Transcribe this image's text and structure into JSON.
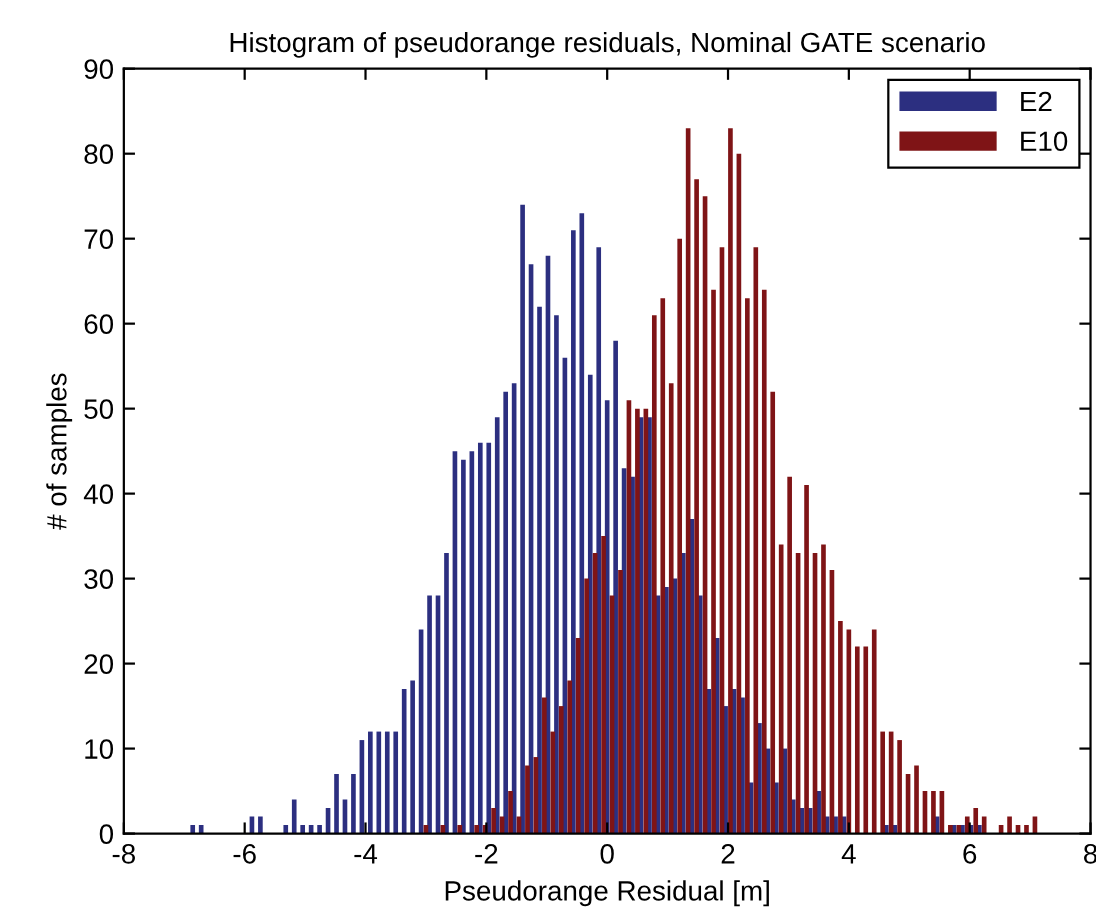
{
  "chart_data": {
    "type": "bar",
    "title": "Histogram of pseudorange residuals, Nominal GATE scenario",
    "xlabel": "Pseudorange Residual [m]",
    "ylabel": "# of samples",
    "xlim": [
      -8,
      8
    ],
    "xticks": [
      -8,
      -6,
      -4,
      -2,
      0,
      2,
      4,
      6,
      8
    ],
    "ylim": [
      0,
      90
    ],
    "yticks": [
      0,
      10,
      20,
      30,
      40,
      50,
      60,
      70,
      80,
      90
    ],
    "grid": false,
    "legend": "top right",
    "series": [
      {
        "name": "E2",
        "color": "#2c2f80",
        "x": [
          -6.86,
          -6.72,
          -6.58,
          -6.44,
          -6.3,
          -6.16,
          -6.02,
          -5.88,
          -5.74,
          -5.6,
          -5.46,
          -5.32,
          -5.18,
          -5.04,
          -4.9,
          -4.76,
          -4.62,
          -4.48,
          -4.34,
          -4.2,
          -4.06,
          -3.92,
          -3.78,
          -3.64,
          -3.5,
          -3.36,
          -3.22,
          -3.08,
          -2.94,
          -2.8,
          -2.66,
          -2.52,
          -2.38,
          -2.24,
          -2.1,
          -1.96,
          -1.82,
          -1.68,
          -1.54,
          -1.4,
          -1.26,
          -1.12,
          -0.98,
          -0.84,
          -0.7,
          -0.56,
          -0.42,
          -0.28,
          -0.14,
          0,
          0.14,
          0.28,
          0.42,
          0.56,
          0.7,
          0.84,
          0.98,
          1.12,
          1.26,
          1.4,
          1.54,
          1.68,
          1.82,
          1.96,
          2.1,
          2.24,
          2.38,
          2.52,
          2.66,
          2.8,
          2.94,
          3.08,
          3.22,
          3.36,
          3.5,
          3.64,
          3.78,
          3.92,
          4.06,
          4.2,
          4.34,
          4.48,
          4.62,
          4.76,
          4.9,
          5.04,
          5.18,
          5.32,
          5.46,
          5.6,
          5.74,
          5.88,
          6.02,
          6.16
        ],
        "values": [
          1,
          1,
          0,
          0,
          0,
          0,
          0,
          2,
          2,
          0,
          0,
          1,
          4,
          1,
          1,
          1,
          3,
          7,
          4,
          7,
          11,
          12,
          12,
          12,
          12,
          17,
          18,
          24,
          28,
          28,
          33,
          45,
          44,
          45,
          46,
          46,
          49,
          52,
          53,
          74,
          67,
          62,
          68,
          61,
          56,
          71,
          73,
          54,
          69,
          51,
          58,
          43,
          42,
          49,
          49,
          28,
          29,
          30,
          33,
          37,
          28,
          17,
          23,
          15,
          17,
          16,
          6,
          13,
          10,
          6,
          10,
          4,
          3,
          3,
          5,
          2,
          2,
          2,
          0,
          0,
          0,
          0,
          1,
          1,
          0,
          0,
          0,
          0,
          2,
          0,
          1,
          1,
          1,
          1
        ]
      },
      {
        "name": "E10",
        "color": "#7f1416",
        "x": [
          -3,
          -2.86,
          -2.72,
          -2.58,
          -2.44,
          -2.3,
          -2.16,
          -2.02,
          -1.88,
          -1.74,
          -1.6,
          -1.46,
          -1.32,
          -1.18,
          -1.04,
          -0.9,
          -0.76,
          -0.62,
          -0.48,
          -0.34,
          -0.2,
          -0.06,
          0.08,
          0.22,
          0.36,
          0.5,
          0.64,
          0.78,
          0.92,
          1.06,
          1.2,
          1.34,
          1.48,
          1.62,
          1.76,
          1.9,
          2.04,
          2.18,
          2.32,
          2.46,
          2.6,
          2.74,
          2.88,
          3.02,
          3.16,
          3.3,
          3.44,
          3.58,
          3.72,
          3.86,
          4.0,
          4.14,
          4.28,
          4.42,
          4.56,
          4.7,
          4.84,
          4.98,
          5.12,
          5.26,
          5.4,
          5.54,
          5.68,
          5.82,
          5.96,
          6.1,
          6.24,
          6.38,
          6.52,
          6.66,
          6.8,
          6.94,
          7.08
        ],
        "values": [
          1,
          0,
          1,
          0,
          1,
          0,
          1,
          1,
          3,
          2,
          5,
          2,
          8,
          9,
          16,
          12,
          15,
          18,
          23,
          30,
          33,
          35,
          28,
          31,
          51,
          50,
          50,
          61,
          63,
          53,
          70,
          83,
          77,
          75,
          64,
          69,
          83,
          80,
          63,
          69,
          64,
          52,
          34,
          42,
          33,
          41,
          33,
          34,
          31,
          25,
          24,
          22,
          22,
          24,
          12,
          12,
          11,
          7,
          8,
          5,
          5,
          5,
          1,
          1,
          2,
          3,
          2,
          0,
          1,
          2,
          1,
          1,
          2
        ]
      }
    ]
  }
}
